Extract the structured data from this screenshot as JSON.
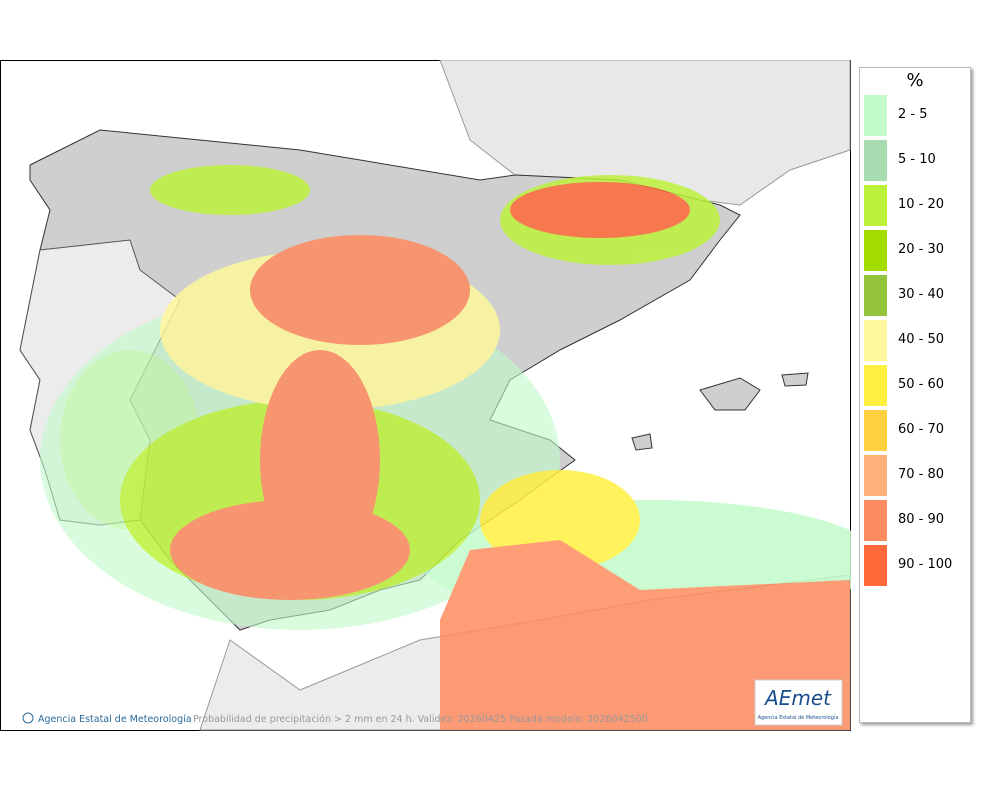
{
  "map": {
    "copyright": "Agencia Estatal de Meteorología",
    "caption": "Probabilidad de precipitación > 2 mm en 24 h. Validez: 20260425 Pasada modelo: 2026042500",
    "logo": {
      "name": "AEmet",
      "subtitle": "Agencia Estatal de Meteorología"
    }
  },
  "legend": {
    "unit": "%",
    "items": [
      {
        "label": "2 - 5",
        "color": "#c2fbc9"
      },
      {
        "label": "5 - 10",
        "color": "#a9dbb1"
      },
      {
        "label": "10 - 20",
        "color": "#bdf23c"
      },
      {
        "label": "20 - 30",
        "color": "#a4dc00"
      },
      {
        "label": "30 - 40",
        "color": "#94c43c"
      },
      {
        "label": "40 - 50",
        "color": "#fff89c"
      },
      {
        "label": "50 - 60",
        "color": "#fff040"
      },
      {
        "label": "60 - 70",
        "color": "#ffd040"
      },
      {
        "label": "70 - 80",
        "color": "#ffb07c"
      },
      {
        "label": "80 - 90",
        "color": "#ff8c60"
      },
      {
        "label": "90 - 100",
        "color": "#ff6838"
      }
    ]
  }
}
